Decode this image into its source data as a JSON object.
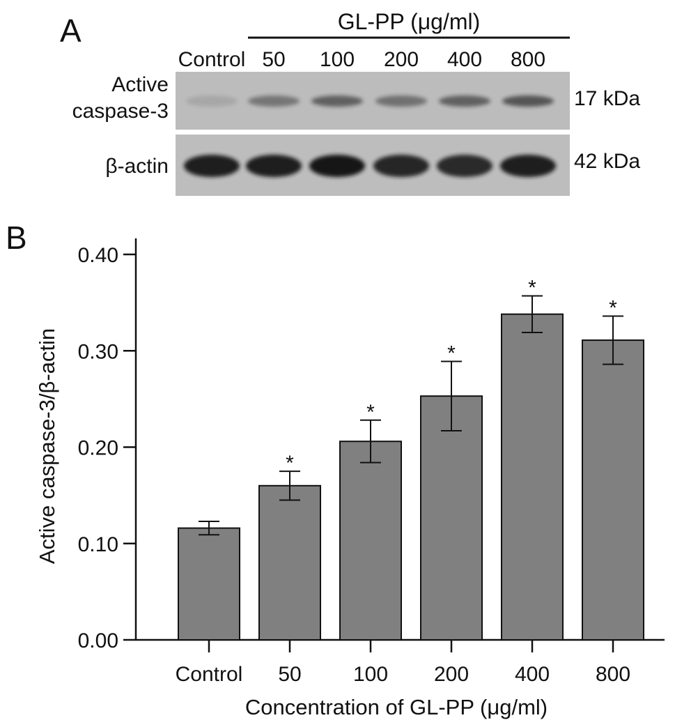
{
  "panel_a": {
    "label": "A",
    "header": "GL-PP (μg/ml)",
    "lane_labels": [
      "Control",
      "50",
      "100",
      "200",
      "400",
      "800"
    ],
    "blot_rows": [
      {
        "name_lines": [
          "Active",
          "caspase-3"
        ],
        "mw": "17 kDa",
        "band_intensity": [
          0.12,
          0.42,
          0.55,
          0.45,
          0.55,
          0.62
        ]
      },
      {
        "name_lines": [
          "β-actin"
        ],
        "mw": "42 kDa",
        "band_intensity": [
          0.95,
          0.95,
          1.0,
          0.9,
          0.88,
          0.95
        ]
      }
    ]
  },
  "panel_b": {
    "label": "B"
  },
  "chart_data": {
    "type": "bar",
    "categories": [
      "Control",
      "50",
      "100",
      "200",
      "400",
      "800"
    ],
    "values": [
      0.116,
      0.16,
      0.206,
      0.253,
      0.338,
      0.311
    ],
    "errors": [
      0.007,
      0.015,
      0.022,
      0.036,
      0.019,
      0.025
    ],
    "significance": [
      "",
      "*",
      "*",
      "*",
      "*",
      "*"
    ],
    "xlabel": "Concentration of GL-PP (μg/ml)",
    "ylabel": "Active caspase-3/β-actin",
    "ylim": [
      0,
      0.4
    ],
    "yticks": [
      "0.00",
      "0.10",
      "0.20",
      "0.30",
      "0.40"
    ],
    "grid": false,
    "bar_color": "#808080"
  }
}
